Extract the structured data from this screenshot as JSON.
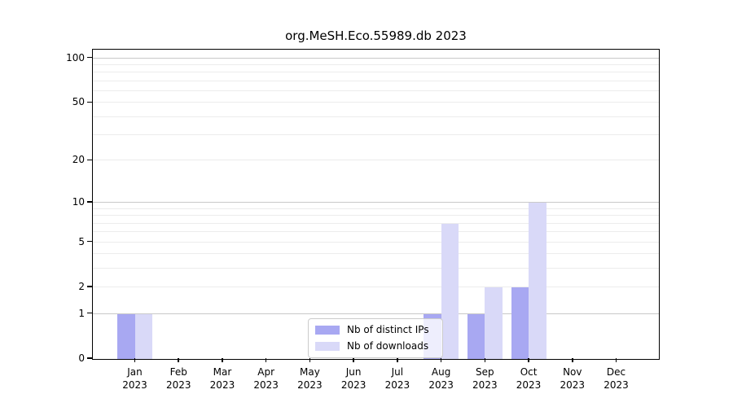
{
  "title": "org.MeSH.Eco.55989.db 2023",
  "colors": {
    "ips_bar": "#a8a8f2",
    "downloads_bar": "#d9d9f8",
    "grid_minor": "#ececec",
    "grid_major": "#c9c9c9",
    "spine": "#000000",
    "legend_border": "#cccccc",
    "legend_background": "rgba(255,255,255,0.8)",
    "text": "#000000"
  },
  "legend": {
    "items": [
      {
        "label": "Nb of distinct IPs",
        "color_key": "ips_bar"
      },
      {
        "label": "Nb of downloads",
        "color_key": "downloads_bar"
      }
    ]
  },
  "chart_data": {
    "type": "bar",
    "title": "org.MeSH.Eco.55989.db 2023",
    "categories": [
      "Jan 2023",
      "Feb 2023",
      "Mar 2023",
      "Apr 2023",
      "May 2023",
      "Jun 2023",
      "Jul 2023",
      "Aug 2023",
      "Sep 2023",
      "Oct 2023",
      "Nov 2023",
      "Dec 2023"
    ],
    "series": [
      {
        "name": "Nb of distinct IPs",
        "color_key": "ips_bar",
        "values": [
          1,
          0,
          0,
          0,
          0,
          0,
          0,
          1,
          1,
          2,
          0,
          0
        ]
      },
      {
        "name": "Nb of downloads",
        "color_key": "downloads_bar",
        "values": [
          1,
          0,
          0,
          0,
          0,
          0,
          0,
          7,
          2,
          10,
          0,
          0
        ]
      }
    ],
    "xlabel": "",
    "ylabel": "",
    "yscale": "log1p",
    "ylim": [
      0,
      113
    ],
    "yticks": [
      {
        "value": 0,
        "label": "0"
      },
      {
        "value": 1,
        "label": "1"
      },
      {
        "value": 2,
        "label": "2"
      },
      {
        "value": 5,
        "label": "5"
      },
      {
        "value": 10,
        "label": "10"
      },
      {
        "value": 20,
        "label": "20"
      },
      {
        "value": 50,
        "label": "50"
      },
      {
        "value": 100,
        "label": "100"
      }
    ],
    "grid": {
      "orientation": "horizontal",
      "minor_values": [
        2,
        3,
        4,
        5,
        6,
        7,
        8,
        9,
        20,
        30,
        40,
        50,
        60,
        70,
        80,
        90
      ],
      "major_values": [
        1,
        10,
        100
      ]
    },
    "legend_position": "lower center"
  }
}
